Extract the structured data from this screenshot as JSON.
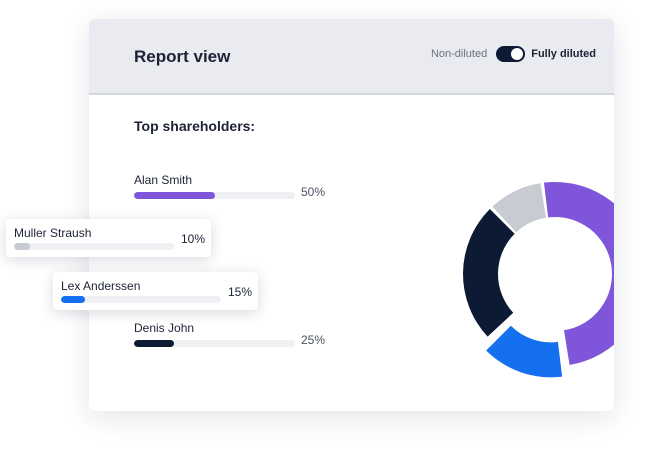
{
  "header": {
    "title": "Report view",
    "toggle": {
      "left_label": "Non-diluted",
      "right_label": "Fully diluted",
      "selected": "Fully diluted"
    }
  },
  "section_title": "Top shareholders:",
  "shareholders": [
    {
      "name": "Alan Smith",
      "percent_label": "50%",
      "value": 50,
      "color": "#7f56d9"
    },
    {
      "name": "Muller Straush",
      "percent_label": "10%",
      "value": 10,
      "color": "#c8cbd1"
    },
    {
      "name": "Lex Anderssen",
      "percent_label": "15%",
      "value": 15,
      "color": "#1570ef"
    },
    {
      "name": "Denis John",
      "percent_label": "25%",
      "value": 25,
      "color": "#0c1a33"
    }
  ],
  "chart_data": {
    "type": "pie",
    "labels": [
      "Alan Smith",
      "Lex Anderssen",
      "Denis John",
      "Muller Straush"
    ],
    "values": [
      50,
      15,
      25,
      10
    ],
    "colors": [
      "#7f56d9",
      "#1570ef",
      "#0c1a33",
      "#c8cbd1"
    ],
    "donut": true
  }
}
